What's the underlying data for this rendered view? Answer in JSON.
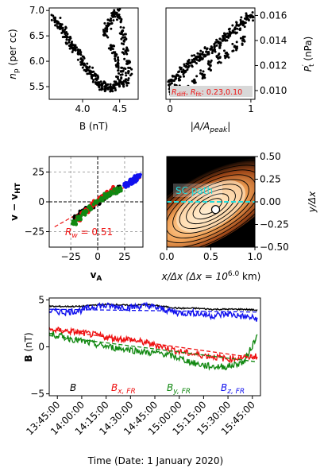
{
  "chart_data": [
    {
      "type": "scatter",
      "xlabel": "B (nT)",
      "ylabel_main": "n",
      "ylabel_sub": "p",
      "ylabel_rest": " (per cc)",
      "xlim": [
        3.55,
        4.75
      ],
      "ylim": [
        5.25,
        7.05
      ],
      "xticks": [
        4.0,
        4.5
      ],
      "xtick_labels": [
        "4.0",
        "4.5"
      ],
      "yticks": [
        5.5,
        6.0,
        6.5,
        7.0
      ],
      "ytick_labels": [
        "5.5",
        "6.0",
        "6.5",
        "7.0"
      ],
      "series": [
        {
          "points": [
            [
              3.62,
              6.85
            ],
            [
              3.66,
              6.78
            ],
            [
              3.7,
              6.7
            ],
            [
              3.74,
              6.6
            ],
            [
              3.78,
              6.5
            ],
            [
              3.82,
              6.42
            ],
            [
              3.86,
              6.33
            ],
            [
              3.9,
              6.25
            ],
            [
              3.94,
              6.15
            ],
            [
              3.98,
              6.05
            ],
            [
              4.02,
              5.95
            ],
            [
              4.06,
              5.88
            ],
            [
              4.1,
              5.8
            ],
            [
              4.14,
              5.72
            ],
            [
              4.18,
              5.65
            ],
            [
              4.22,
              5.58
            ],
            [
              4.26,
              5.52
            ],
            [
              4.3,
              5.5
            ],
            [
              4.34,
              5.47
            ],
            [
              4.38,
              5.45
            ],
            [
              4.42,
              5.5
            ],
            [
              4.46,
              5.55
            ],
            [
              4.5,
              5.62
            ],
            [
              4.54,
              5.58
            ],
            [
              4.58,
              5.6
            ],
            [
              4.3,
              6.55
            ],
            [
              4.34,
              6.7
            ],
            [
              4.38,
              6.8
            ],
            [
              4.42,
              6.9
            ],
            [
              4.46,
              6.95
            ],
            [
              4.5,
              6.85
            ],
            [
              4.54,
              6.6
            ],
            [
              4.56,
              6.4
            ],
            [
              4.58,
              6.2
            ],
            [
              4.6,
              6.0
            ],
            [
              4.62,
              5.8
            ],
            [
              4.4,
              6.3
            ],
            [
              4.44,
              6.1
            ],
            [
              4.48,
              5.95
            ],
            [
              4.52,
              5.8
            ]
          ]
        }
      ]
    },
    {
      "type": "scatter",
      "xlabel": "|A/A",
      "xlabel_sub": "peak",
      "xlabel_end": "|",
      "ylabel": "P",
      "ylabel_sup": "′",
      "ylabel_sub": "t",
      "ylabel_rest": " (nPa)",
      "xlim": [
        -0.05,
        1.05
      ],
      "ylim": [
        0.0093,
        0.0166
      ],
      "xticks": [
        0,
        1
      ],
      "xtick_labels": [
        "0",
        "1"
      ],
      "yticks": [
        0.01,
        0.012,
        0.014,
        0.016
      ],
      "ytick_labels": [
        "0.010",
        "0.012",
        "0.014",
        "0.016"
      ],
      "series": [
        {
          "points": [
            [
              0.0,
              0.0105
            ],
            [
              0.05,
              0.0108
            ],
            [
              0.1,
              0.0112
            ],
            [
              0.15,
              0.0115
            ],
            [
              0.2,
              0.0119
            ],
            [
              0.25,
              0.0122
            ],
            [
              0.3,
              0.0125
            ],
            [
              0.35,
              0.0127
            ],
            [
              0.4,
              0.0129
            ],
            [
              0.45,
              0.0131
            ],
            [
              0.5,
              0.0133
            ],
            [
              0.55,
              0.0135
            ],
            [
              0.6,
              0.0138
            ],
            [
              0.65,
              0.014
            ],
            [
              0.7,
              0.0143
            ],
            [
              0.75,
              0.0146
            ],
            [
              0.8,
              0.0149
            ],
            [
              0.85,
              0.0152
            ],
            [
              0.9,
              0.0155
            ],
            [
              0.95,
              0.0158
            ],
            [
              1.0,
              0.016
            ],
            [
              0.02,
              0.0099
            ],
            [
              0.1,
              0.01
            ],
            [
              0.2,
              0.0102
            ],
            [
              0.3,
              0.0108
            ],
            [
              0.4,
              0.0113
            ],
            [
              0.5,
              0.012
            ],
            [
              0.6,
              0.0126
            ],
            [
              0.7,
              0.013
            ],
            [
              0.8,
              0.0135
            ],
            [
              0.9,
              0.014
            ]
          ]
        }
      ],
      "annotation": {
        "R1": "R",
        "R1_sub": "diff",
        "sep": ", ",
        "R2": "R",
        "R2_sub": "fit",
        "value": ": 0.23,0.10",
        "color": "#ee1111",
        "bg": "#d8d8d8"
      }
    },
    {
      "type": "scatter",
      "xlabel": "v",
      "xlabel_sub": "A",
      "ylabel": "v − v",
      "ylabel_sub": "HT",
      "xlim": [
        -45,
        42
      ],
      "ylim": [
        -38,
        38
      ],
      "xticks": [
        -25,
        0,
        25
      ],
      "xtick_labels": [
        "−25",
        "0",
        "25"
      ],
      "yticks": [
        -25,
        0,
        25
      ],
      "ytick_labels": [
        "−25",
        "0",
        "25"
      ],
      "grid": true,
      "fit_line": {
        "x": [
          -40,
          42
        ],
        "y": [
          -21,
          21
        ],
        "color": "#ee1111"
      },
      "annotation": {
        "text": "R",
        "sub": "w",
        "value": " = 0.51",
        "color": "#ee1111"
      },
      "series": [
        {
          "name": "B",
          "color": "#000000",
          "points": [
            [
              -20,
              -13
            ],
            [
              -15,
              -9
            ],
            [
              -10,
              -6
            ],
            [
              -5,
              -3
            ],
            [
              0,
              0
            ],
            [
              5,
              3
            ],
            [
              10,
              6
            ],
            [
              15,
              9
            ],
            [
              20,
              11
            ]
          ]
        },
        {
          "name": "B_x",
          "color": "#ee1111",
          "points": [
            [
              -18,
              -14
            ],
            [
              -14,
              -10
            ],
            [
              -10,
              -7
            ],
            [
              -6,
              -3
            ],
            [
              -2,
              -1
            ],
            [
              2,
              2
            ],
            [
              6,
              5
            ],
            [
              10,
              7
            ],
            [
              14,
              9
            ],
            [
              16,
              11
            ]
          ]
        },
        {
          "name": "B_y",
          "color": "#118811",
          "points": [
            [
              -22,
              -17
            ],
            [
              -17,
              -13
            ],
            [
              -12,
              -9
            ],
            [
              -7,
              -5
            ],
            [
              -2,
              -1
            ],
            [
              3,
              2
            ],
            [
              8,
              5
            ],
            [
              12,
              7
            ],
            [
              16,
              9
            ],
            [
              20,
              10
            ]
          ]
        },
        {
          "name": "B_z",
          "color": "#1111ee",
          "points": [
            [
              26,
              14
            ],
            [
              28,
              15
            ],
            [
              30,
              16
            ],
            [
              32,
              17
            ],
            [
              34,
              18
            ],
            [
              36,
              20
            ],
            [
              38,
              22
            ]
          ]
        }
      ]
    },
    {
      "type": "heatmap",
      "xlabel": "x/Δx (Δx = 10",
      "xlabel_sup": "6.0",
      "xlabel_end": " km)",
      "ylabel": "y/Δx",
      "xlim": [
        0,
        1
      ],
      "ylim": [
        -0.5,
        0.5
      ],
      "xticks": [
        0,
        0.5,
        1.0
      ],
      "xtick_labels": [
        "0.0",
        "0.5",
        "1.0"
      ],
      "yticks": [
        -0.5,
        -0.25,
        0,
        0.25,
        0.5
      ],
      "ytick_labels": [
        "−0.50",
        "−0.25",
        "0.00",
        "0.25",
        "0.50"
      ],
      "annotation": {
        "text": "SC path",
        "color": "#22dddd"
      },
      "sc_path_y": 0.0,
      "center": [
        0.5,
        -0.05
      ],
      "angle_deg": -30,
      "contour_levels": 9
    },
    {
      "type": "line",
      "xlabel": "Time (Date: 1 January 2020)",
      "ylabel": "B",
      "ylabel_rest": " (nT)",
      "ylim": [
        -5.2,
        5.2
      ],
      "yticks": [
        -5,
        0,
        5
      ],
      "ytick_labels": [
        "−5",
        "0",
        "5"
      ],
      "x_start": "13:45:00",
      "x_end": "15:45:00",
      "xticks": [
        "13:45:00",
        "14:00:00",
        "14:15:00",
        "14:30:00",
        "14:45:00",
        "15:00:00",
        "15:15:00",
        "15:30:00",
        "15:45:00"
      ],
      "series": [
        {
          "name": "B",
          "color": "#000000",
          "x": [
            "13:40",
            "13:50",
            "14:00",
            "14:10",
            "14:20",
            "14:30",
            "14:40",
            "14:50",
            "15:00",
            "15:10",
            "15:20",
            "15:30",
            "15:40",
            "15:48"
          ],
          "y": [
            4.3,
            4.3,
            4.3,
            4.5,
            4.5,
            4.4,
            4.5,
            4.3,
            4.1,
            4.1,
            4.0,
            4.0,
            4.0,
            3.9
          ]
        },
        {
          "name": "B_z,FR",
          "color": "#1111ee",
          "x": [
            "13:40",
            "13:50",
            "14:00",
            "14:10",
            "14:20",
            "14:30",
            "14:40",
            "14:50",
            "15:00",
            "15:10",
            "15:20",
            "15:30",
            "15:40",
            "15:48"
          ],
          "y": [
            3.8,
            3.7,
            3.9,
            4.4,
            4.3,
            4.2,
            4.4,
            4.0,
            3.6,
            3.6,
            3.3,
            3.5,
            3.2,
            3.0
          ]
        },
        {
          "name": "B_x,FR",
          "color": "#ee1111",
          "x": [
            "13:40",
            "13:50",
            "14:00",
            "14:10",
            "14:20",
            "14:30",
            "14:40",
            "14:50",
            "15:00",
            "15:10",
            "15:20",
            "15:30",
            "15:40",
            "15:48"
          ],
          "y": [
            1.8,
            1.7,
            1.5,
            1.2,
            0.9,
            0.8,
            0.4,
            0.0,
            -0.5,
            -0.8,
            -1.0,
            -1.3,
            -1.1,
            -1.0
          ]
        },
        {
          "name": "B_y,FR",
          "color": "#118811",
          "x": [
            "13:40",
            "13:50",
            "14:00",
            "14:10",
            "14:20",
            "14:30",
            "14:40",
            "14:50",
            "15:00",
            "15:10",
            "15:20",
            "15:30",
            "15:40",
            "15:48"
          ],
          "y": [
            1.4,
            1.0,
            0.6,
            0.2,
            -0.1,
            -0.3,
            -0.6,
            -0.7,
            -1.2,
            -1.8,
            -2.1,
            -2.1,
            -1.6,
            1.2
          ]
        },
        {
          "name": "B_x,FR dashed",
          "color": "#ee1111",
          "dashed": true,
          "x": [
            "13:40",
            "15:48"
          ],
          "y": [
            1.9,
            -1.2
          ]
        },
        {
          "name": "B_y,FR dashed",
          "color": "#118811",
          "dashed": true,
          "x": [
            "13:40",
            "15:48"
          ],
          "y": [
            1.2,
            -1.6
          ]
        },
        {
          "name": "B_z,FR dashed",
          "color": "#1111ee",
          "dashed": true,
          "x": [
            "13:40",
            "15:48"
          ],
          "y": [
            4.0,
            3.7
          ]
        }
      ],
      "legend": [
        {
          "text": "B",
          "sub": "",
          "color": "#000000"
        },
        {
          "text": "B",
          "sub": "x, FR",
          "color": "#ee1111"
        },
        {
          "text": "B",
          "sub": "y, FR",
          "color": "#118811"
        },
        {
          "text": "B",
          "sub": "z, FR",
          "color": "#1111ee"
        }
      ]
    }
  ]
}
